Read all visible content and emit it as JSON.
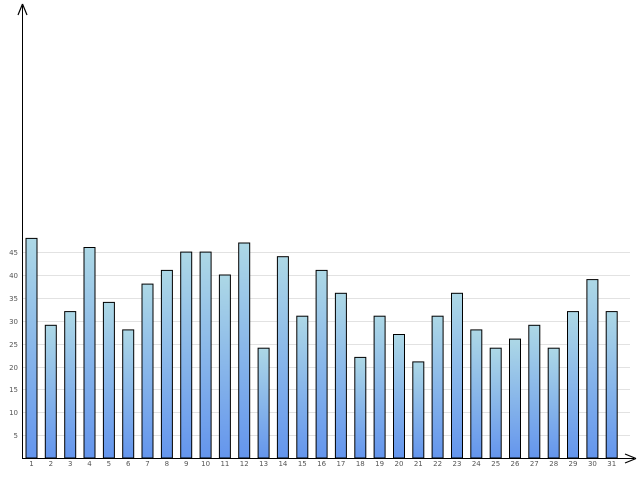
{
  "chart_data": {
    "type": "bar",
    "categories": [
      "1",
      "2",
      "3",
      "4",
      "5",
      "6",
      "7",
      "8",
      "9",
      "10",
      "11",
      "12",
      "13",
      "14",
      "15",
      "16",
      "17",
      "18",
      "19",
      "20",
      "21",
      "22",
      "23",
      "24",
      "25",
      "26",
      "27",
      "28",
      "29",
      "30",
      "31"
    ],
    "values": [
      48,
      29,
      32,
      46,
      34,
      28,
      38,
      41,
      45,
      45,
      40,
      47,
      24,
      44,
      31,
      41,
      36,
      22,
      31,
      27,
      21,
      31,
      36,
      28,
      24,
      26,
      29,
      24,
      32,
      39,
      32
    ],
    "title": "",
    "xlabel": "",
    "ylabel": "",
    "ylim": [
      0,
      50
    ],
    "yticks": [
      5,
      10,
      15,
      20,
      25,
      30,
      35,
      40,
      45
    ],
    "ytick_labels": [
      "5",
      "10",
      "15",
      "20",
      "25",
      "30",
      "35",
      "40",
      "45"
    ],
    "grid": "horizontal",
    "legend": "none",
    "colors": {
      "bar_top": "#add8e6",
      "bar_bottom": "#6495ed",
      "bar_stroke": "#000000",
      "grid": "#e2e2e2",
      "axis": "#000000"
    }
  }
}
